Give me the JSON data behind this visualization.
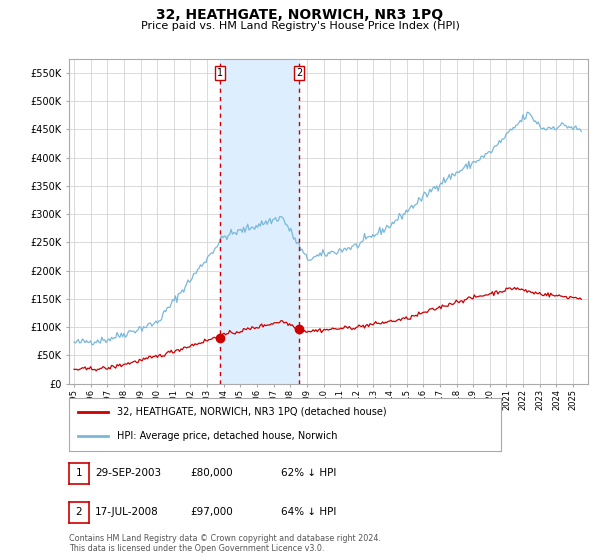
{
  "title": "32, HEATHGATE, NORWICH, NR3 1PQ",
  "subtitle": "Price paid vs. HM Land Registry's House Price Index (HPI)",
  "legend_entry1": "32, HEATHGATE, NORWICH, NR3 1PQ (detached house)",
  "legend_entry2": "HPI: Average price, detached house, Norwich",
  "sale1_date": "29-SEP-2003",
  "sale1_price": "£80,000",
  "sale1_hpi": "62% ↓ HPI",
  "sale2_date": "17-JUL-2008",
  "sale2_price": "£97,000",
  "sale2_hpi": "64% ↓ HPI",
  "footer": "Contains HM Land Registry data © Crown copyright and database right 2024.\nThis data is licensed under the Open Government Licence v3.0.",
  "hpi_color": "#7ab8d9",
  "price_color": "#cc0000",
  "marker_color": "#cc0000",
  "shade_color": "#ddeeff",
  "vline_color": "#cc0000",
  "grid_color": "#cccccc",
  "bg_color": "#ffffff",
  "plot_bg_color": "#ffffff",
  "ylim": [
    0,
    575000
  ],
  "yticks": [
    0,
    50000,
    100000,
    150000,
    200000,
    250000,
    300000,
    350000,
    400000,
    450000,
    500000,
    550000
  ],
  "sale1_year": 2003.75,
  "sale2_year": 2008.54,
  "sale1_value": 80000,
  "sale2_value": 97000
}
